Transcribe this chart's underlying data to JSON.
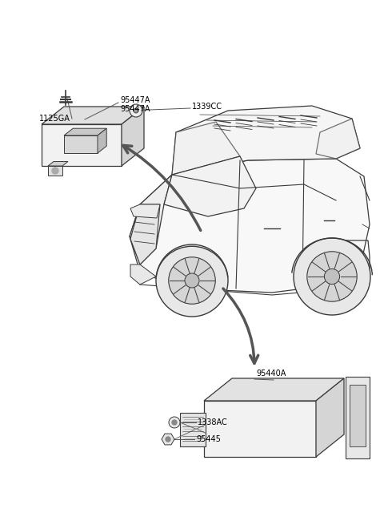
{
  "bg_color": "#ffffff",
  "line_color": "#3a3a3a",
  "text_color": "#000000",
  "arrow_color": "#555555",
  "fig_width": 4.8,
  "fig_height": 6.55,
  "dpi": 100,
  "font_size": 7.0,
  "label_texts": {
    "1125GA": "1125GA",
    "95447A_top": "95447A",
    "95447A_bot": "95447A",
    "1339CC": "1339CC",
    "95440A": "95440A",
    "1338AC": "1338AC",
    "95445": "95445"
  }
}
